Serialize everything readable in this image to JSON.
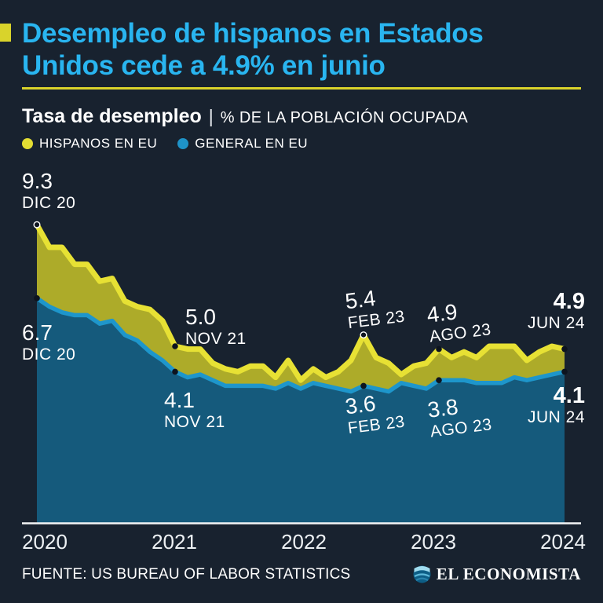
{
  "background_color": "#18222f",
  "accent_colors": {
    "yellow": "#d9d32b",
    "cyan_title": "#29b5f0"
  },
  "header": {
    "title_line1": "Desempleo de hispanos en Estados",
    "title_line2": "Unidos cede a 4.9% en junio",
    "subtitle_bold": "Tasa de desempleo",
    "subtitle_separator": "|",
    "subtitle_rest": "% DE LA POBLACIÓN OCUPADA",
    "legend": [
      {
        "label": "HISPANOS EN EU",
        "color": "#e3dd33"
      },
      {
        "label": "GENERAL EN EU",
        "color": "#1e93c8"
      }
    ]
  },
  "chart_data": {
    "type": "area",
    "title": "Tasa de desempleo",
    "ylabel": "% DE LA POBLACIÓN OCUPADA",
    "x_tick_labels": [
      "2020",
      "2021",
      "2022",
      "2023",
      "2024"
    ],
    "x_range": [
      "DIC 2020",
      "JUN 2024"
    ],
    "frequency": "monthly",
    "ylim": [
      0,
      10
    ],
    "grid": false,
    "legend_position": "top-left",
    "axis_color": "#f2f4f6",
    "marker_color": "#0d141f",
    "series": [
      {
        "name": "HISPANOS EN EU",
        "line_color": "#e7e134",
        "fill_color": "#adab29",
        "values": [
          9.3,
          8.5,
          8.5,
          7.9,
          7.9,
          7.3,
          7.4,
          6.6,
          6.4,
          6.3,
          5.9,
          5.0,
          4.9,
          4.9,
          4.4,
          4.2,
          4.1,
          4.3,
          4.3,
          3.9,
          4.5,
          3.8,
          4.2,
          3.9,
          4.1,
          4.5,
          5.4,
          4.6,
          4.4,
          4.0,
          4.3,
          4.4,
          4.9,
          4.6,
          4.8,
          4.6,
          5.0,
          5.0,
          5.0,
          4.5,
          4.8,
          5.0,
          4.9
        ]
      },
      {
        "name": "GENERAL EN EU",
        "line_color": "#1e96cb",
        "fill_color": "#155a7c",
        "values": [
          6.7,
          6.4,
          6.2,
          6.1,
          6.1,
          5.8,
          5.9,
          5.4,
          5.2,
          4.8,
          4.5,
          4.1,
          3.9,
          4.0,
          3.8,
          3.6,
          3.6,
          3.6,
          3.6,
          3.5,
          3.7,
          3.5,
          3.7,
          3.6,
          3.5,
          3.4,
          3.6,
          3.5,
          3.4,
          3.7,
          3.6,
          3.5,
          3.8,
          3.8,
          3.8,
          3.7,
          3.7,
          3.7,
          3.9,
          3.8,
          3.9,
          4.0,
          4.1
        ]
      }
    ],
    "annotations": [
      {
        "value": "9.3",
        "label": "DIC 20",
        "series": 0,
        "month_index": 0
      },
      {
        "value": "6.7",
        "label": "DIC 20",
        "series": 1,
        "month_index": 0
      },
      {
        "value": "5.0",
        "label": "NOV 21",
        "series": 0,
        "month_index": 11
      },
      {
        "value": "4.1",
        "label": "NOV 21",
        "series": 1,
        "month_index": 11
      },
      {
        "value": "5.4",
        "label": "FEB 23",
        "series": 0,
        "month_index": 26
      },
      {
        "value": "3.6",
        "label": "FEB 23",
        "series": 1,
        "month_index": 26
      },
      {
        "value": "4.9",
        "label": "AGO 23",
        "series": 0,
        "month_index": 32
      },
      {
        "value": "3.8",
        "label": "AGO 23",
        "series": 1,
        "month_index": 32
      },
      {
        "value": "4.9",
        "label": "JUN 24",
        "series": 0,
        "month_index": 42
      },
      {
        "value": "4.1",
        "label": "JUN 24",
        "series": 1,
        "month_index": 42
      }
    ]
  },
  "footer": {
    "source": "FUENTE: US BUREAU OF LABOR STATISTICS",
    "brand": "EL ECONOMISTA"
  }
}
